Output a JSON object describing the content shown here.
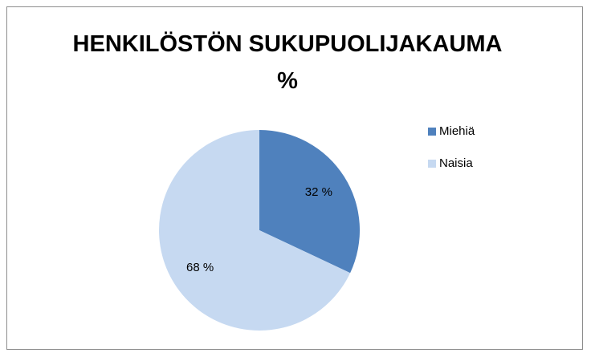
{
  "chart_data": {
    "type": "pie",
    "title": "HENKILÖSTÖN SUKUPUOLIJAKAUMA %",
    "categories": [
      "Miehiä",
      "Naisia"
    ],
    "values": [
      32,
      68
    ],
    "value_labels": [
      "32 %",
      "68 %"
    ],
    "colors": [
      "#4f81bd",
      "#c6d9f1"
    ],
    "legend": "right"
  }
}
